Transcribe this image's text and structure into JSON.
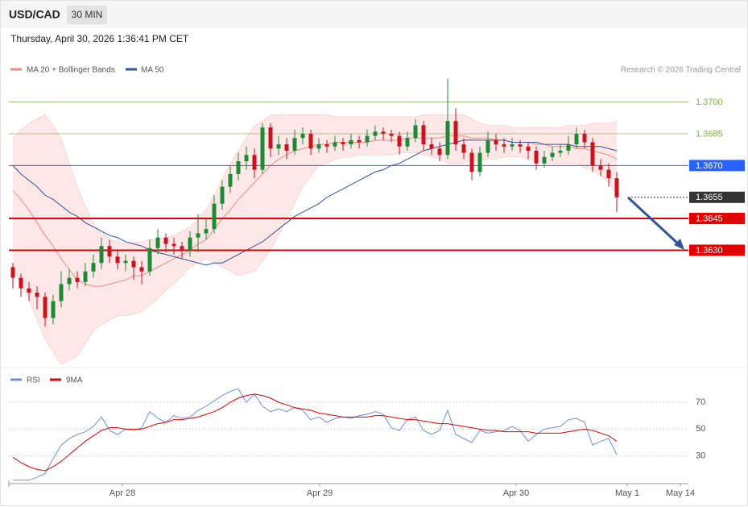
{
  "header": {
    "symbol": "USD/CAD",
    "interval": "30 MIN",
    "timestamp": "Thursday, April 30, 2026 1:36:41 PM CET",
    "credit": "Research © 2026 Trading Central"
  },
  "chart_data": [
    {
      "type": "candlestick",
      "ylim": [
        1.3575,
        1.3712
      ],
      "colors": {
        "up": "#1e8a35",
        "down": "#c8141e"
      },
      "open": [
        1.3622,
        1.3617,
        1.3612,
        1.361,
        1.3608,
        1.3598,
        1.3606,
        1.3614,
        1.3617,
        1.3615,
        1.362,
        1.3624,
        1.3632,
        1.3627,
        1.3624,
        1.3625,
        1.3622,
        1.362,
        1.3631,
        1.3636,
        1.3633,
        1.3632,
        1.363,
        1.3636,
        1.3638,
        1.364,
        1.3652,
        1.366,
        1.3666,
        1.3672,
        1.3675,
        1.3668,
        1.3688,
        1.3678,
        1.368,
        1.3677,
        1.3683,
        1.3685,
        1.3678,
        1.368,
        1.3679,
        1.3681,
        1.368,
        1.3682,
        1.3681,
        1.3684,
        1.3686,
        1.3685,
        1.3684,
        1.3679,
        1.3683,
        1.3689,
        1.368,
        1.3678,
        1.3675,
        1.3691,
        1.368,
        1.3676,
        1.3667,
        1.3676,
        1.3682,
        1.368,
        1.3679,
        1.368,
        1.3679,
        1.3677,
        1.3671,
        1.3674,
        1.3676,
        1.3677,
        1.368,
        1.3685,
        1.3681,
        1.367,
        1.3668,
        1.3664
      ],
      "high": [
        1.3624,
        1.3619,
        1.3615,
        1.3613,
        1.361,
        1.3609,
        1.362,
        1.3621,
        1.362,
        1.3624,
        1.3628,
        1.3636,
        1.3635,
        1.363,
        1.3628,
        1.3627,
        1.3625,
        1.3635,
        1.364,
        1.3638,
        1.3636,
        1.3634,
        1.3639,
        1.3647,
        1.3645,
        1.3656,
        1.3663,
        1.367,
        1.3676,
        1.3679,
        1.3678,
        1.369,
        1.369,
        1.3684,
        1.3683,
        1.3687,
        1.3688,
        1.3687,
        1.3683,
        1.3682,
        1.3684,
        1.3683,
        1.3685,
        1.3684,
        1.3687,
        1.3689,
        1.3688,
        1.3687,
        1.3686,
        1.3686,
        1.3692,
        1.3691,
        1.3683,
        1.3681,
        1.3711,
        1.3697,
        1.3683,
        1.3678,
        1.3679,
        1.3686,
        1.3685,
        1.3683,
        1.3683,
        1.3682,
        1.3681,
        1.3679,
        1.3677,
        1.3679,
        1.368,
        1.3684,
        1.3688,
        1.3687,
        1.3683,
        1.3673,
        1.3671,
        1.3667
      ],
      "low": [
        1.3612,
        1.3608,
        1.3606,
        1.3602,
        1.3594,
        1.3595,
        1.3603,
        1.3611,
        1.3612,
        1.3613,
        1.3617,
        1.3621,
        1.3624,
        1.3621,
        1.362,
        1.3616,
        1.3614,
        1.3618,
        1.3628,
        1.3629,
        1.3628,
        1.3626,
        1.3627,
        1.3629,
        1.3635,
        1.3638,
        1.3649,
        1.3657,
        1.3663,
        1.3668,
        1.3664,
        1.3666,
        1.3674,
        1.3675,
        1.3673,
        1.3675,
        1.368,
        1.3675,
        1.3676,
        1.3676,
        1.3677,
        1.3677,
        1.3678,
        1.3678,
        1.3679,
        1.3682,
        1.3682,
        1.3681,
        1.3675,
        1.3677,
        1.3681,
        1.3677,
        1.3675,
        1.3672,
        1.3673,
        1.3677,
        1.3673,
        1.3663,
        1.3665,
        1.3674,
        1.3677,
        1.3676,
        1.3677,
        1.3676,
        1.3673,
        1.3668,
        1.3669,
        1.3672,
        1.3674,
        1.3675,
        1.3678,
        1.3678,
        1.3667,
        1.3665,
        1.366,
        1.3648
      ],
      "close": [
        1.3617,
        1.3612,
        1.361,
        1.3608,
        1.3598,
        1.3606,
        1.3614,
        1.3617,
        1.3615,
        1.362,
        1.3624,
        1.3632,
        1.3627,
        1.3624,
        1.3625,
        1.3622,
        1.362,
        1.3631,
        1.3636,
        1.3633,
        1.3632,
        1.363,
        1.3636,
        1.3638,
        1.364,
        1.3652,
        1.366,
        1.3666,
        1.3672,
        1.3675,
        1.3668,
        1.3688,
        1.3678,
        1.368,
        1.3677,
        1.3683,
        1.3685,
        1.3678,
        1.368,
        1.3679,
        1.3681,
        1.368,
        1.3682,
        1.3681,
        1.3684,
        1.3686,
        1.3685,
        1.3684,
        1.3679,
        1.3683,
        1.3689,
        1.368,
        1.3678,
        1.3675,
        1.3691,
        1.368,
        1.3676,
        1.3667,
        1.3676,
        1.3682,
        1.368,
        1.3679,
        1.368,
        1.3679,
        1.3677,
        1.3671,
        1.3674,
        1.3676,
        1.3677,
        1.368,
        1.3685,
        1.3681,
        1.367,
        1.3668,
        1.3664,
        1.3655
      ],
      "bands": {
        "name": "MA 20 + Bollinger Bands",
        "color": "#f28b82",
        "fill": "#fde3e3",
        "upper": [
          1.3683,
          1.3687,
          1.369,
          1.3692,
          1.3694,
          1.3689,
          1.3683,
          1.3671,
          1.366,
          1.3651,
          1.3643,
          1.3639,
          1.3635,
          1.3634,
          1.3633,
          1.3634,
          1.3634,
          1.3635,
          1.3635,
          1.3636,
          1.3637,
          1.3639,
          1.3641,
          1.3645,
          1.3649,
          1.3656,
          1.3664,
          1.3671,
          1.3677,
          1.3683,
          1.3689,
          1.3691,
          1.3694,
          1.3694,
          1.3694,
          1.3694,
          1.3694,
          1.3694,
          1.3694,
          1.3694,
          1.3693,
          1.3693,
          1.3693,
          1.3693,
          1.3693,
          1.3693,
          1.3693,
          1.3693,
          1.3693,
          1.3693,
          1.3693,
          1.3694,
          1.3694,
          1.3694,
          1.3694,
          1.3694,
          1.3694,
          1.3692,
          1.369,
          1.3689,
          1.3689,
          1.3689,
          1.3688,
          1.3688,
          1.3688,
          1.3688,
          1.3688,
          1.3688,
          1.3688,
          1.3689,
          1.3689,
          1.3689,
          1.369,
          1.369,
          1.369,
          1.3691
        ],
        "middle": [
          1.3658,
          1.3654,
          1.3649,
          1.3643,
          1.3637,
          1.3632,
          1.3626,
          1.3621,
          1.3616,
          1.3614,
          1.3613,
          1.3613,
          1.3614,
          1.3615,
          1.3616,
          1.3618,
          1.3618,
          1.362,
          1.3622,
          1.3624,
          1.3626,
          1.3628,
          1.363,
          1.3633,
          1.3635,
          1.364,
          1.3645,
          1.3649,
          1.3654,
          1.3658,
          1.3662,
          1.3666,
          1.367,
          1.3673,
          1.3675,
          1.3677,
          1.3678,
          1.3679,
          1.368,
          1.368,
          1.3681,
          1.3681,
          1.3681,
          1.3681,
          1.3681,
          1.3682,
          1.3682,
          1.3682,
          1.3682,
          1.3683,
          1.3683,
          1.3683,
          1.3683,
          1.3683,
          1.3684,
          1.3684,
          1.3684,
          1.3683,
          1.3683,
          1.3683,
          1.3682,
          1.3682,
          1.3681,
          1.3681,
          1.3681,
          1.368,
          1.368,
          1.3679,
          1.3679,
          1.3679,
          1.3678,
          1.3678,
          1.3677,
          1.3676,
          1.3675,
          1.3673
        ],
        "lower": [
          1.3622,
          1.3614,
          1.3607,
          1.3597,
          1.3588,
          1.3582,
          1.3576,
          1.3578,
          1.358,
          1.3586,
          1.3592,
          1.3595,
          1.3597,
          1.3599,
          1.3599,
          1.36,
          1.3601,
          1.3604,
          1.3607,
          1.3611,
          1.3614,
          1.3618,
          1.3622,
          1.3624,
          1.3626,
          1.3624,
          1.3622,
          1.362,
          1.3618,
          1.3619,
          1.362,
          1.3625,
          1.363,
          1.3637,
          1.3645,
          1.3652,
          1.366,
          1.3665,
          1.367,
          1.3671,
          1.3673,
          1.3674,
          1.3674,
          1.3675,
          1.3675,
          1.3675,
          1.3675,
          1.3675,
          1.3676,
          1.3676,
          1.3676,
          1.3675,
          1.3674,
          1.3673,
          1.3671,
          1.3671,
          1.3671,
          1.3672,
          1.3672,
          1.3673,
          1.3673,
          1.3674,
          1.3674,
          1.3674,
          1.3673,
          1.3672,
          1.3671,
          1.3671,
          1.3671,
          1.3671,
          1.3671,
          1.3669,
          1.3668,
          1.3665,
          1.3662,
          1.3656
        ]
      },
      "series": [
        {
          "name": "MA 50",
          "color": "#2f5597",
          "values": [
            1.367,
            1.3666,
            1.3663,
            1.366,
            1.3656,
            1.3654,
            1.3651,
            1.3648,
            1.3646,
            1.3643,
            1.3641,
            1.3639,
            1.3637,
            1.3636,
            1.3634,
            1.3633,
            1.3632,
            1.363,
            1.3629,
            1.3628,
            1.3627,
            1.3626,
            1.3625,
            1.3624,
            1.3623,
            1.3624,
            1.3624,
            1.3626,
            1.3628,
            1.363,
            1.3632,
            1.3634,
            1.3637,
            1.364,
            1.3643,
            1.3646,
            1.3648,
            1.365,
            1.3652,
            1.3655,
            1.3657,
            1.3659,
            1.3661,
            1.3663,
            1.3665,
            1.3667,
            1.3668,
            1.367,
            1.3671,
            1.3673,
            1.3675,
            1.3677,
            1.3678,
            1.3679,
            1.368,
            1.3681,
            1.3682,
            1.3682,
            1.3682,
            1.3682,
            1.3682,
            1.3682,
            1.3681,
            1.3681,
            1.3681,
            1.3681,
            1.368,
            1.368,
            1.368,
            1.368,
            1.3679,
            1.3679,
            1.3679,
            1.3679,
            1.3678,
            1.3677
          ]
        }
      ],
      "levels": [
        {
          "value": 1.37,
          "label": "1.3700",
          "color": "#7cb342",
          "line": "solid",
          "width": 0.8,
          "box": false
        },
        {
          "value": 1.3685,
          "label": "1.3685",
          "color": "#7cb342",
          "line": "solid",
          "width": 0.6,
          "box": false
        },
        {
          "value": 1.367,
          "label": "1.3670",
          "color": "#2962ff",
          "line": "solid",
          "width": 1,
          "box": true
        },
        {
          "value": 1.3655,
          "label": "1.3655",
          "color": "#333333",
          "line": "dotted",
          "width": 1,
          "box": true
        },
        {
          "value": 1.3645,
          "label": "1.3645",
          "color": "#e00000",
          "line": "solid",
          "width": 2,
          "box": true
        },
        {
          "value": 1.363,
          "label": "1.3630",
          "color": "#e00000",
          "line": "solid",
          "width": 2,
          "box": true
        }
      ]
    },
    {
      "type": "line",
      "ylim": [
        10,
        82
      ],
      "yticks": [
        30,
        50,
        70
      ],
      "grid": true,
      "x_labels": [
        "Apr 28",
        "Apr 29",
        "Apr 30",
        "May 1",
        "May 14"
      ],
      "series": [
        {
          "name": "RSI",
          "color": "#6f8fe0",
          "values": [
            12,
            12,
            12,
            14,
            17,
            28,
            38,
            43,
            46,
            48,
            52,
            59,
            49,
            46,
            50,
            49,
            51,
            63,
            58,
            55,
            60,
            58,
            59,
            64,
            67,
            71,
            75,
            78,
            80,
            70,
            76,
            67,
            63,
            65,
            63,
            66,
            64,
            57,
            59,
            55,
            58,
            59,
            58,
            60,
            61,
            63,
            61,
            51,
            49,
            57,
            59,
            49,
            46,
            49,
            64,
            46,
            43,
            40,
            49,
            47,
            48,
            49,
            52,
            49,
            41,
            46,
            50,
            51,
            52,
            57,
            58,
            55,
            38,
            41,
            43,
            31
          ]
        },
        {
          "name": "9MA",
          "color": "#e00000",
          "values": [
            29,
            25,
            22,
            20,
            19,
            22,
            26,
            31,
            36,
            41,
            45,
            49,
            51,
            51,
            50,
            50,
            50,
            52,
            54,
            55,
            57,
            57,
            58,
            59,
            61,
            63,
            66,
            70,
            73,
            75,
            76,
            75,
            73,
            70,
            68,
            66,
            65,
            64,
            62,
            61,
            60,
            59,
            59,
            59,
            59,
            60,
            60,
            59,
            58,
            57,
            57,
            56,
            55,
            54,
            54,
            53,
            52,
            51,
            50,
            49,
            49,
            48,
            48,
            48,
            48,
            47,
            47,
            47,
            47,
            48,
            49,
            50,
            49,
            47,
            45,
            41
          ]
        }
      ]
    }
  ]
}
